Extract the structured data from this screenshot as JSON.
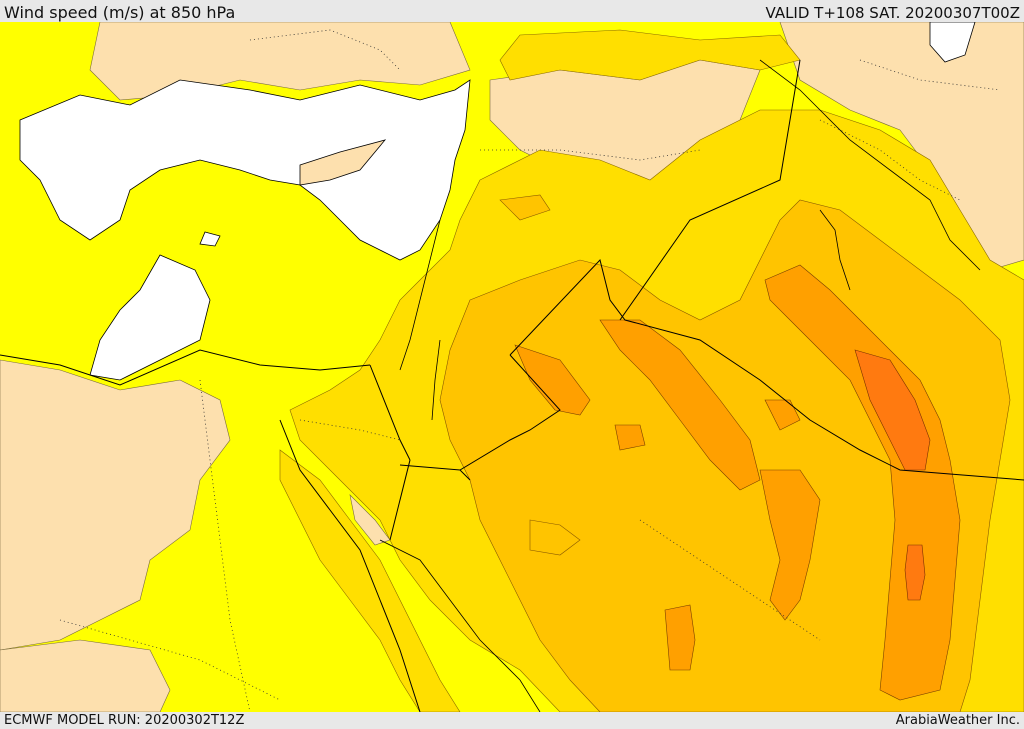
{
  "header": {
    "title": "Wind speed (m/s) at 850 hPa",
    "valid": "VALID T+108 SAT. 20200307T00Z"
  },
  "footer": {
    "run": "ECMWF MODEL RUN: 20200302T12Z",
    "credit": "ArabiaWeather Inc."
  },
  "map": {
    "palette": {
      "sea": "#ffffff",
      "band_0": "#fde0ae",
      "band_1": "#ffff00",
      "band_2": "#ffdf00",
      "band_3": "#ffc400",
      "band_4": "#ffa000",
      "band_5": "#ff7a10",
      "boundary": "#000000"
    }
  }
}
